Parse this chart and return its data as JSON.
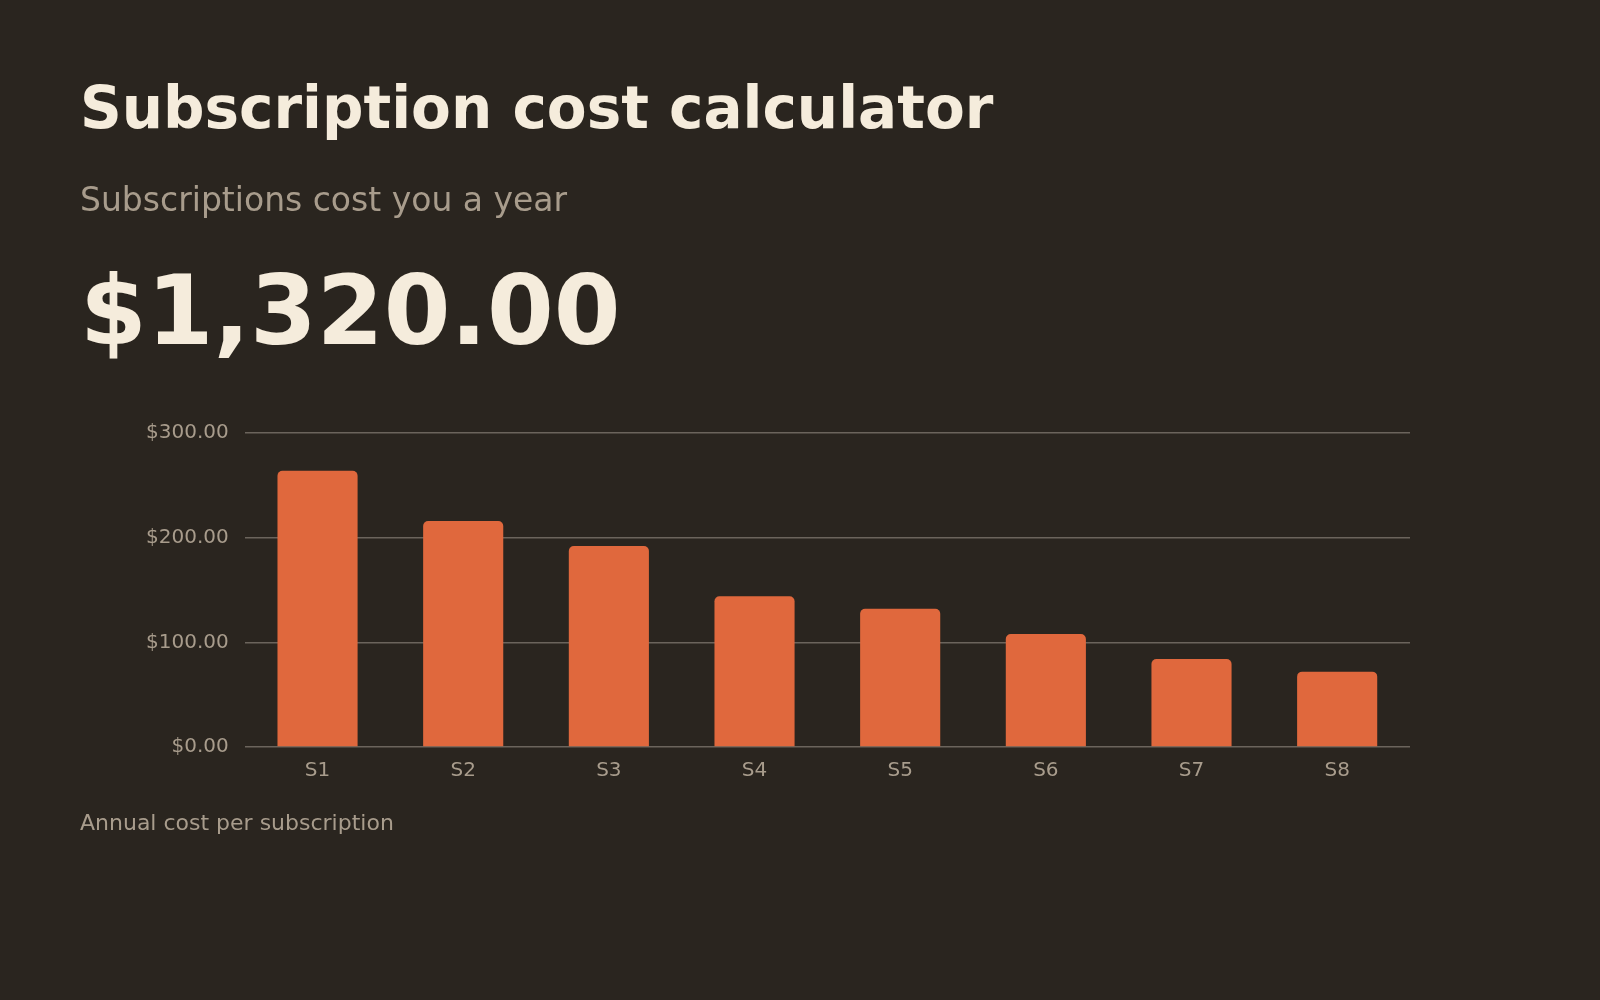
{
  "chart_data": {
    "type": "bar",
    "title": "Subscription cost calculator",
    "subtitle": "Subscriptions cost you a year",
    "annotations": [
      "$1,320.00",
      "Annual cost per subscription"
    ],
    "categories": [
      "S1",
      "S2",
      "S3",
      "S4",
      "S5",
      "S6",
      "S7",
      "S8"
    ],
    "values": [
      264,
      216,
      192,
      144,
      132,
      108,
      84,
      72
    ],
    "color": "#e0683d",
    "ylim": [
      0,
      300
    ],
    "yticks": [
      {
        "value": 0,
        "label": "$0.00"
      },
      {
        "value": 100,
        "label": "$100.00"
      },
      {
        "value": 200,
        "label": "$200.00"
      },
      {
        "value": 300,
        "label": "$300.00"
      }
    ],
    "grid": "y",
    "legend": false
  }
}
